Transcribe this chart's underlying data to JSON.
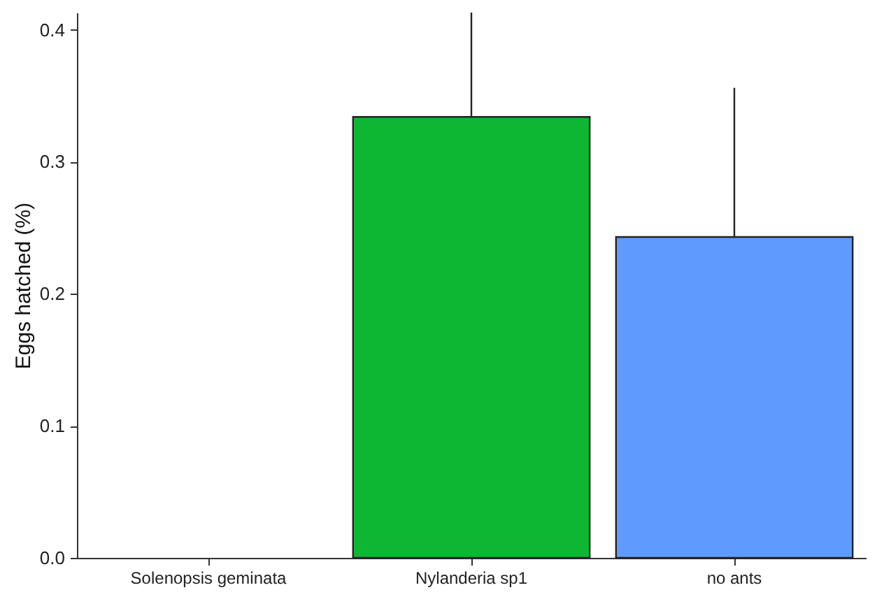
{
  "chart_data": {
    "type": "bar",
    "ylabel": "Eggs hatched (%)",
    "categories": [
      "Solenopsis geminata",
      "Nylanderia sp1",
      "no ants"
    ],
    "values": [
      0,
      0.334,
      0.243
    ],
    "colors": [
      null,
      "#0db734",
      "#5f9bff"
    ],
    "errors": [
      null,
      [
        0.334,
        0.413
      ],
      [
        0.243,
        0.356
      ]
    ],
    "ylim": [
      0,
      0.413
    ],
    "yticks": [
      {
        "value": 0,
        "label": "0.0"
      },
      0.1,
      0.2,
      0.3,
      0.4
    ],
    "grid": false
  }
}
